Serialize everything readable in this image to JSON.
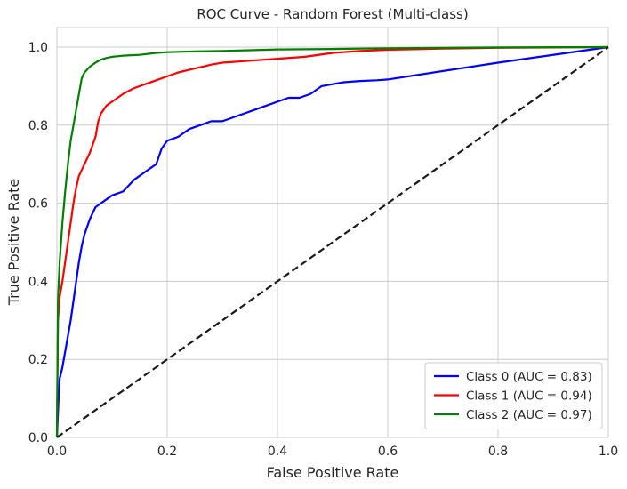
{
  "chart_data": {
    "type": "line",
    "title": "ROC Curve - Random Forest (Multi-class)",
    "xlabel": "False Positive Rate",
    "ylabel": "True Positive Rate",
    "xlim": [
      0.0,
      1.0
    ],
    "ylim": [
      0.0,
      1.05
    ],
    "xticks": [
      "0.0",
      "0.2",
      "0.4",
      "0.6",
      "0.8",
      "1.0"
    ],
    "yticks": [
      "0.0",
      "0.2",
      "0.4",
      "0.6",
      "0.8",
      "1.0"
    ],
    "grid": true,
    "legend_position": "lower-right",
    "series": [
      {
        "name": "Class 0 (AUC = 0.83)",
        "color": "#0000ff",
        "x": [
          0,
          0.003,
          0.005,
          0.01,
          0.015,
          0.02,
          0.025,
          0.03,
          0.035,
          0.04,
          0.045,
          0.05,
          0.055,
          0.06,
          0.07,
          0.08,
          0.09,
          0.1,
          0.12,
          0.14,
          0.16,
          0.18,
          0.19,
          0.2,
          0.22,
          0.24,
          0.26,
          0.28,
          0.3,
          0.32,
          0.34,
          0.36,
          0.38,
          0.4,
          0.42,
          0.44,
          0.46,
          0.48,
          0.5,
          0.52,
          0.55,
          0.58,
          0.6,
          0.8,
          1.0
        ],
        "y": [
          0,
          0.1,
          0.15,
          0.18,
          0.22,
          0.26,
          0.3,
          0.35,
          0.4,
          0.45,
          0.49,
          0.52,
          0.54,
          0.56,
          0.59,
          0.6,
          0.61,
          0.62,
          0.63,
          0.66,
          0.68,
          0.7,
          0.74,
          0.76,
          0.77,
          0.79,
          0.8,
          0.81,
          0.81,
          0.82,
          0.83,
          0.84,
          0.85,
          0.86,
          0.87,
          0.87,
          0.88,
          0.9,
          0.905,
          0.91,
          0.913,
          0.915,
          0.917,
          0.96,
          1.0
        ]
      },
      {
        "name": "Class 1 (AUC = 0.94)",
        "color": "#ff0000",
        "x": [
          0,
          0.002,
          0.005,
          0.01,
          0.015,
          0.02,
          0.025,
          0.03,
          0.035,
          0.04,
          0.05,
          0.06,
          0.07,
          0.075,
          0.08,
          0.09,
          0.1,
          0.12,
          0.14,
          0.16,
          0.18,
          0.2,
          0.22,
          0.25,
          0.28,
          0.3,
          0.35,
          0.4,
          0.45,
          0.5,
          0.55,
          0.6,
          0.7,
          0.8,
          0.9,
          1.0
        ],
        "y": [
          0,
          0.3,
          0.36,
          0.4,
          0.45,
          0.5,
          0.55,
          0.6,
          0.64,
          0.67,
          0.7,
          0.73,
          0.77,
          0.81,
          0.83,
          0.85,
          0.86,
          0.88,
          0.895,
          0.905,
          0.915,
          0.925,
          0.935,
          0.945,
          0.955,
          0.96,
          0.965,
          0.97,
          0.975,
          0.985,
          0.99,
          0.993,
          0.996,
          0.998,
          0.999,
          1.0
        ]
      },
      {
        "name": "Class 2 (AUC = 0.97)",
        "color": "#008000",
        "x": [
          0,
          0.002,
          0.005,
          0.01,
          0.015,
          0.02,
          0.025,
          0.03,
          0.035,
          0.04,
          0.045,
          0.05,
          0.06,
          0.07,
          0.08,
          0.09,
          0.1,
          0.12,
          0.15,
          0.18,
          0.2,
          0.25,
          0.3,
          0.35,
          0.4,
          0.5,
          0.6,
          0.8,
          1.0
        ],
        "y": [
          0,
          0.35,
          0.45,
          0.55,
          0.63,
          0.7,
          0.76,
          0.8,
          0.84,
          0.88,
          0.92,
          0.935,
          0.95,
          0.96,
          0.968,
          0.972,
          0.975,
          0.978,
          0.98,
          0.985,
          0.987,
          0.989,
          0.99,
          0.992,
          0.994,
          0.995,
          0.997,
          0.999,
          1.0
        ]
      },
      {
        "name": "",
        "color": "#1a1a1a",
        "dashed": true,
        "x": [
          0,
          1
        ],
        "y": [
          0,
          1
        ]
      }
    ]
  }
}
